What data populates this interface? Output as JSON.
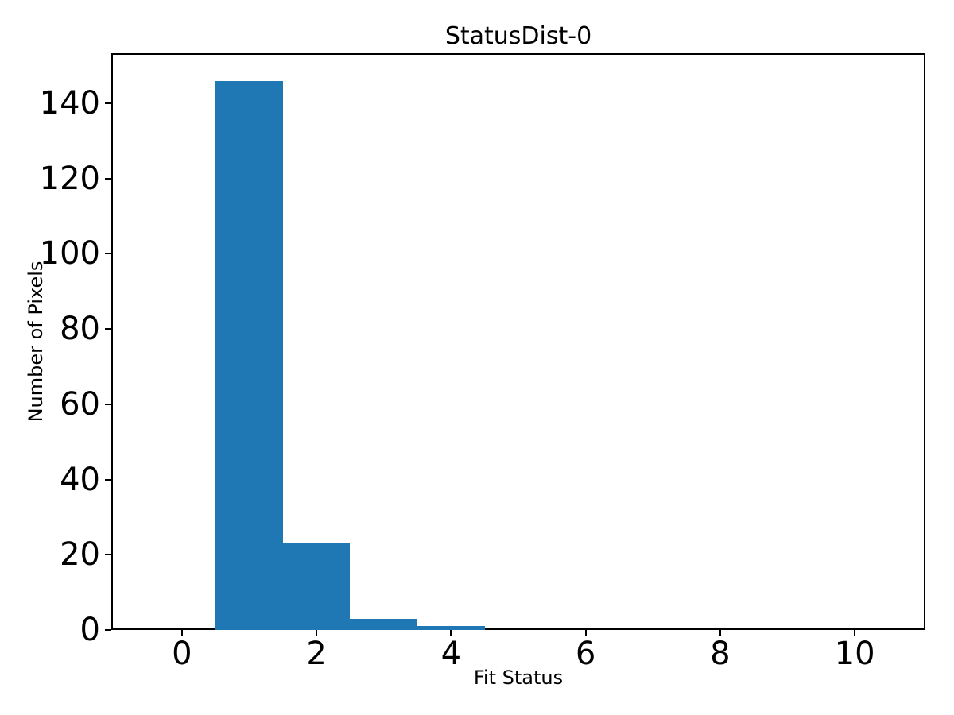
{
  "figure": {
    "background_color": "#ffffff",
    "spine_color": "#000000",
    "text_color": "#000000"
  },
  "chart_data": {
    "type": "bar",
    "subtype": "histogram",
    "title": "StatusDist-0",
    "xlabel": "Fit Status",
    "ylabel": "Number of Pixels",
    "bin_edges": [
      0.5,
      1.5,
      2.5,
      3.5,
      4.5
    ],
    "counts": [
      146,
      23,
      3,
      1
    ],
    "x_ticks": [
      0,
      2,
      4,
      6,
      8,
      10
    ],
    "y_ticks": [
      0,
      20,
      40,
      60,
      80,
      100,
      120,
      140
    ],
    "xlim": [
      -1.05,
      11.05
    ],
    "ylim": [
      0,
      153.3
    ],
    "bar_color": "#1f77b4",
    "grid": false,
    "legend": null
  }
}
